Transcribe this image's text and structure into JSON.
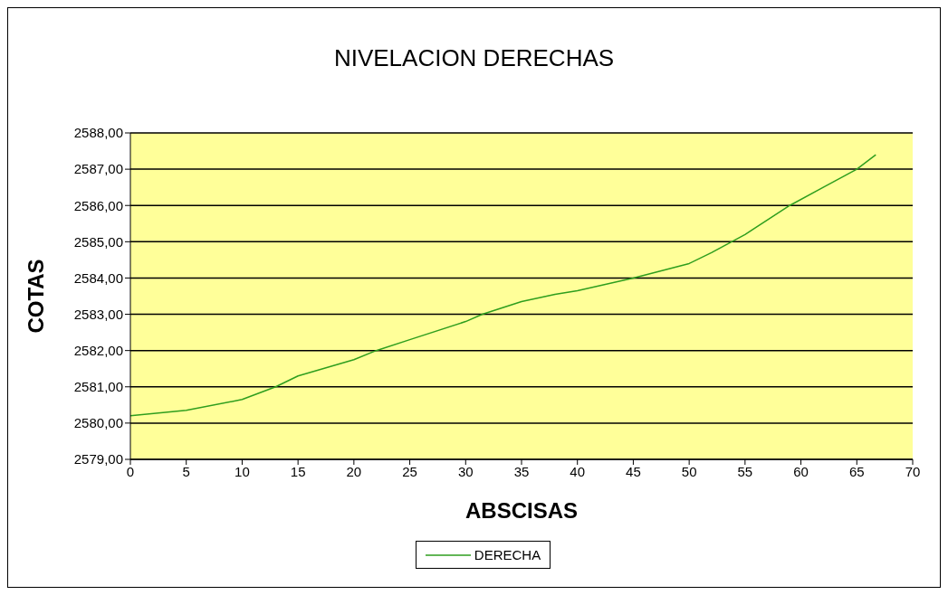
{
  "chart_data": {
    "type": "line",
    "title": "NIVELACION DERECHAS",
    "xlabel": "ABSCISAS",
    "ylabel": "COTAS",
    "x": [
      0,
      5,
      10,
      13,
      15,
      20,
      22,
      25,
      30,
      31.5,
      35,
      38,
      40,
      45,
      50,
      52,
      55,
      59,
      62,
      65,
      66.7
    ],
    "series": [
      {
        "name": "DERECHA",
        "color": "#2e9e1e",
        "values": [
          2580.2,
          2580.35,
          2580.65,
          2581.0,
          2581.3,
          2581.75,
          2582.0,
          2582.3,
          2582.8,
          2583.0,
          2583.35,
          2583.55,
          2583.65,
          2584.0,
          2584.4,
          2584.7,
          2585.2,
          2586.0,
          2586.5,
          2587.0,
          2587.4
        ]
      }
    ],
    "xlim": [
      0,
      70
    ],
    "xticks": [
      0,
      5,
      10,
      15,
      20,
      25,
      30,
      35,
      40,
      45,
      50,
      55,
      60,
      65,
      70
    ],
    "ylim": [
      2579,
      2588
    ],
    "yticks": [
      {
        "value": 2579,
        "label": "2579,00"
      },
      {
        "value": 2580,
        "label": "2580,00"
      },
      {
        "value": 2581,
        "label": "2581,00"
      },
      {
        "value": 2582,
        "label": "2582,00"
      },
      {
        "value": 2583,
        "label": "2583,00"
      },
      {
        "value": 2584,
        "label": "2584,00"
      },
      {
        "value": 2585,
        "label": "2585,00"
      },
      {
        "value": 2586,
        "label": "2586,00"
      },
      {
        "value": 2587,
        "label": "2587,00"
      },
      {
        "value": 2588,
        "label": "2588,00"
      }
    ],
    "grid": "y",
    "legend": "bottom",
    "marker": "none",
    "line_style": "solid"
  }
}
